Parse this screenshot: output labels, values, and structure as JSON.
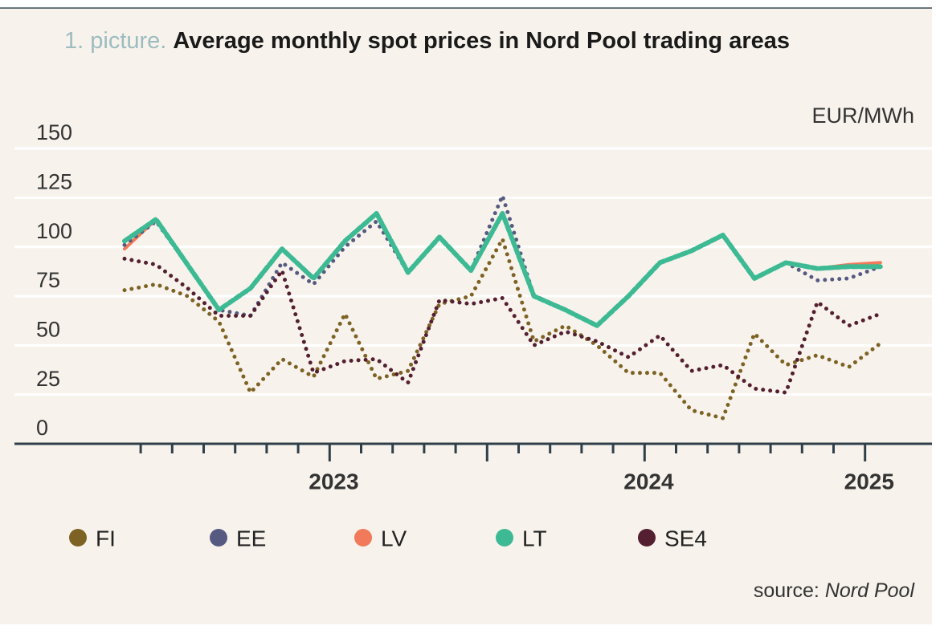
{
  "chart_data": {
    "type": "line",
    "title_prefix": "1. picture.",
    "title": "Average monthly spot prices in Nord Pool trading areas",
    "y_unit": "EUR/MWh",
    "source_label": "source:",
    "source": "Nord Pool",
    "categories": [
      null,
      null,
      null,
      null,
      null,
      null,
      null,
      "2023",
      null,
      null,
      null,
      null,
      null,
      null,
      null,
      null,
      null,
      "2024",
      null,
      null,
      null,
      null,
      null,
      null,
      "2025"
    ],
    "ylim": [
      0,
      150
    ],
    "yticks": [
      0,
      25,
      50,
      75,
      100,
      125,
      150
    ],
    "grid": true,
    "series": [
      {
        "name": "FI",
        "color": "#7d6224",
        "values": [
          78,
          81,
          75,
          62,
          26,
          43,
          34,
          66,
          33,
          37,
          71,
          75,
          104,
          52,
          60,
          50,
          36,
          36,
          17,
          13,
          56,
          40,
          45,
          39,
          51
        ]
      },
      {
        "name": "EE",
        "color": "#575a80",
        "values": [
          101,
          113,
          91,
          68,
          65,
          92,
          81,
          100,
          113,
          87,
          105,
          88,
          126,
          75,
          68,
          60,
          75,
          92,
          98,
          106,
          84,
          92,
          83,
          84,
          90
        ]
      },
      {
        "name": "LV",
        "color": "#f07a59",
        "values": [
          99,
          114,
          91,
          68,
          79,
          99,
          84,
          103,
          117,
          87,
          105,
          88,
          117,
          75,
          68,
          60,
          75,
          92,
          98,
          106,
          84,
          92,
          89,
          91,
          92
        ]
      },
      {
        "name": "LT",
        "color": "#3dba94",
        "values": [
          103,
          114,
          91,
          68,
          79,
          99,
          84,
          103,
          117,
          87,
          105,
          88,
          117,
          75,
          68,
          60,
          75,
          92,
          98,
          106,
          84,
          92,
          89,
          90,
          90
        ]
      },
      {
        "name": "SE4",
        "color": "#541f30",
        "values": [
          94,
          91,
          79,
          65,
          65,
          88,
          36,
          42,
          43,
          31,
          73,
          71,
          74,
          50,
          57,
          52,
          44,
          55,
          37,
          40,
          28,
          26,
          72,
          60,
          66
        ]
      }
    ]
  }
}
